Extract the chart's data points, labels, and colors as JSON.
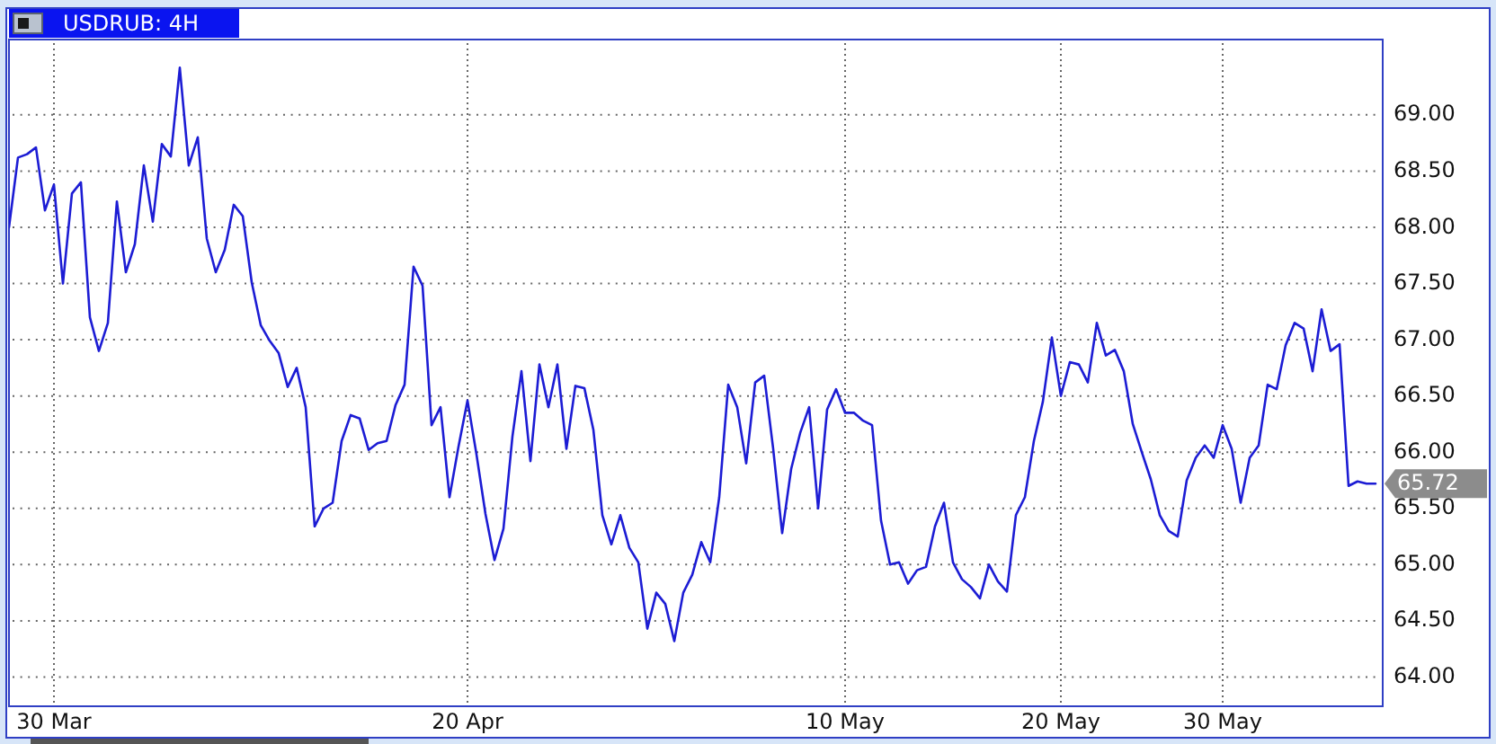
{
  "chart_data": {
    "type": "line",
    "title": "USDRUB: 4H",
    "categories": [
      null,
      null,
      null,
      null,
      null,
      "30 Mar",
      null,
      null,
      null,
      null,
      null,
      null,
      null,
      null,
      null,
      null,
      null,
      null,
      null,
      null,
      null,
      null,
      null,
      null,
      null,
      null,
      null,
      null,
      null,
      null,
      null,
      null,
      null,
      null,
      null,
      null,
      null,
      null,
      null,
      null,
      null,
      null,
      null,
      null,
      null,
      null,
      null,
      null,
      null,
      null,
      null,
      "20 Apr",
      null,
      null,
      null,
      null,
      null,
      null,
      null,
      null,
      null,
      null,
      null,
      null,
      null,
      null,
      null,
      null,
      null,
      null,
      null,
      null,
      null,
      null,
      null,
      null,
      null,
      null,
      null,
      null,
      null,
      null,
      null,
      null,
      null,
      null,
      null,
      null,
      null,
      null,
      null,
      null,
      null,
      "10 May",
      null,
      null,
      null,
      null,
      null,
      null,
      null,
      null,
      null,
      null,
      null,
      null,
      null,
      null,
      null,
      null,
      null,
      null,
      null,
      null,
      null,
      null,
      null,
      "20 May",
      null,
      null,
      null,
      null,
      null,
      null,
      null,
      null,
      null,
      null,
      null,
      null,
      null,
      null,
      null,
      null,
      null,
      "30 May",
      null,
      null,
      null,
      null,
      null,
      null,
      null,
      null,
      null,
      null,
      null,
      null,
      null,
      null,
      null,
      null,
      null
    ],
    "series": [
      {
        "color": "#1c1cd4",
        "values": [
          68.0,
          68.62,
          68.65,
          68.71,
          68.15,
          68.38,
          67.5,
          68.3,
          68.4,
          67.2,
          66.9,
          67.15,
          68.23,
          67.6,
          67.85,
          68.55,
          68.05,
          68.74,
          68.63,
          69.42,
          68.55,
          68.8,
          67.9,
          67.6,
          67.8,
          68.2,
          68.1,
          67.51,
          67.13,
          66.99,
          66.88,
          66.58,
          66.75,
          66.4,
          65.34,
          65.5,
          65.55,
          66.1,
          66.33,
          66.3,
          66.02,
          66.08,
          66.1,
          66.42,
          66.6,
          67.65,
          67.48,
          66.24,
          66.4,
          65.6,
          66.05,
          66.46,
          65.98,
          65.45,
          65.04,
          65.32,
          66.14,
          66.72,
          65.92,
          66.78,
          66.4,
          66.78,
          66.03,
          66.59,
          66.57,
          66.2,
          65.44,
          65.18,
          65.44,
          65.15,
          65.02,
          64.43,
          64.75,
          64.65,
          64.32,
          64.75,
          64.91,
          65.2,
          65.02,
          65.6,
          66.6,
          66.4,
          65.9,
          66.62,
          66.68,
          66.03,
          65.28,
          65.85,
          66.17,
          66.4,
          65.5,
          66.38,
          66.56,
          66.35,
          66.35,
          66.28,
          66.24,
          65.39,
          65.0,
          65.02,
          64.83,
          64.95,
          64.98,
          65.34,
          65.55,
          65.02,
          64.87,
          64.8,
          64.7,
          65.0,
          64.85,
          64.76,
          65.44,
          65.6,
          66.1,
          66.45,
          67.02,
          66.5,
          66.8,
          66.78,
          66.62,
          67.15,
          66.86,
          66.91,
          66.72,
          66.25,
          66.0,
          65.76,
          65.44,
          65.3,
          65.25,
          65.75,
          65.95,
          66.06,
          65.95,
          66.24,
          66.03,
          65.55,
          65.95,
          66.06,
          66.6,
          66.56,
          66.95,
          67.15,
          67.1,
          66.72,
          67.27,
          66.9,
          66.96,
          65.7,
          65.74,
          65.72,
          65.72
        ]
      }
    ],
    "ylim": [
      63.74,
      69.67
    ],
    "yticks": [
      {
        "value": 64,
        "label": "64.00"
      },
      {
        "value": 64.5,
        "label": "64.50"
      },
      {
        "value": 65,
        "label": "65.00"
      },
      {
        "value": 65.5,
        "label": "65.50"
      },
      {
        "value": 66,
        "label": "66.00"
      },
      {
        "value": 66.5,
        "label": "66.50"
      },
      {
        "value": 67,
        "label": "67.00"
      },
      {
        "value": 67.5,
        "label": "67.50"
      },
      {
        "value": 68,
        "label": "68.00"
      },
      {
        "value": 68.5,
        "label": "68.50"
      },
      {
        "value": 69,
        "label": "69.00"
      }
    ],
    "grid": true,
    "line_style": "solid",
    "annotations": [
      "65.72"
    ]
  }
}
